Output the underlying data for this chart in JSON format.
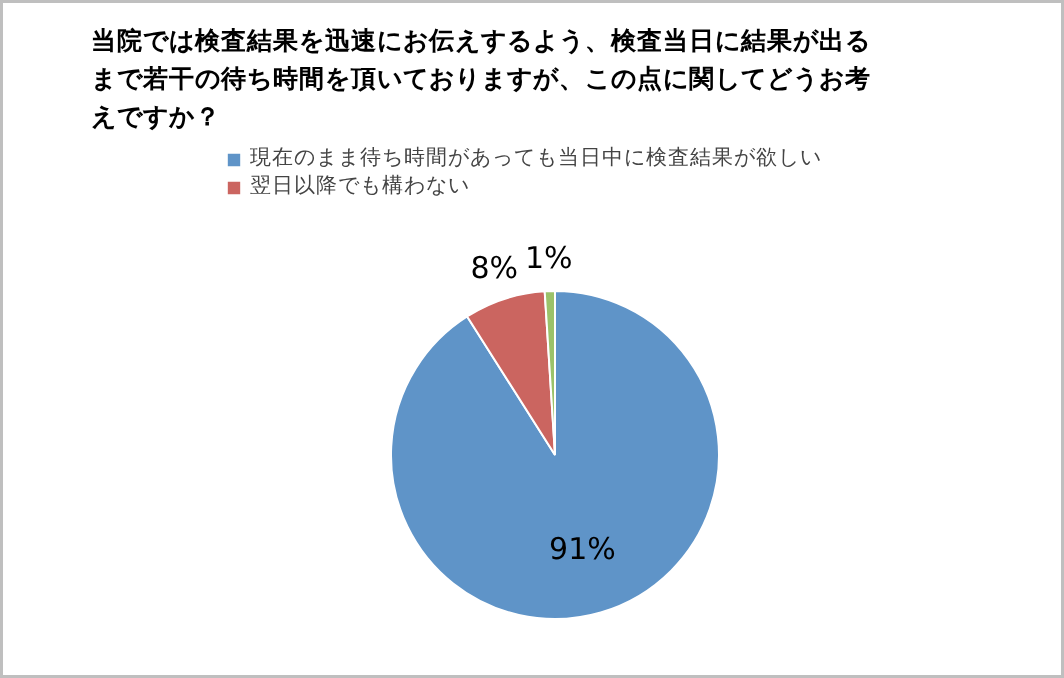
{
  "chart_data": {
    "type": "pie",
    "title": "当院では検査結果を迅速にお伝えするよう、検査当日に結果が出るまで若干の待ち時間を頂いておりますが、この点に関してどうお考えですか？",
    "categories": [
      "現在のまま待ち時間があっても当日中に検査結果が欲しい",
      "翌日以降でも構わない",
      null
    ],
    "values": [
      91,
      8,
      1
    ],
    "colors": [
      "#5f94c8",
      "#cb6560",
      "#9bc26a"
    ],
    "value_labels": [
      "91%",
      "8%",
      "1%"
    ],
    "legend": "top"
  }
}
